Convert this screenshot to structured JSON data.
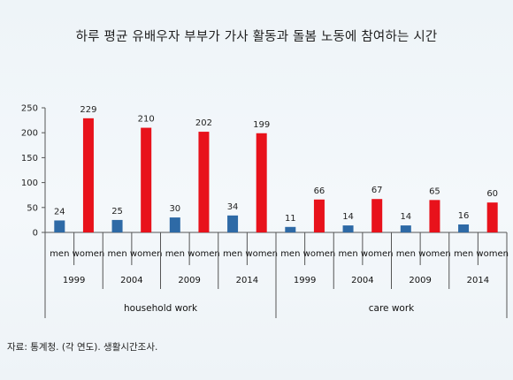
{
  "title": "하루 평균 유배우자 부부가 가사 활동과 돌봄 노동에 참여하는 시간",
  "source": "자료: 통계청. (각 연도). 생활시간조사.",
  "colors": {
    "men": "#2e6aa6",
    "women": "#e8121b"
  },
  "chart_data": {
    "type": "bar",
    "ylim": [
      0,
      250
    ],
    "yticks": [
      0,
      50,
      100,
      150,
      200,
      250
    ],
    "grid": false,
    "groups": [
      {
        "label": "household work",
        "years": [
          {
            "year": "1999",
            "men": 24,
            "women": 229
          },
          {
            "year": "2004",
            "men": 25,
            "women": 210
          },
          {
            "year": "2009",
            "men": 30,
            "women": 202
          },
          {
            "year": "2014",
            "men": 34,
            "women": 199
          }
        ]
      },
      {
        "label": "care work",
        "years": [
          {
            "year": "1999",
            "men": 11,
            "women": 66
          },
          {
            "year": "2004",
            "men": 14,
            "women": 67
          },
          {
            "year": "2009",
            "men": 14,
            "women": 65
          },
          {
            "year": "2014",
            "men": 16,
            "women": 60
          }
        ]
      }
    ],
    "gender_labels": {
      "men": "men",
      "women": "women"
    }
  }
}
